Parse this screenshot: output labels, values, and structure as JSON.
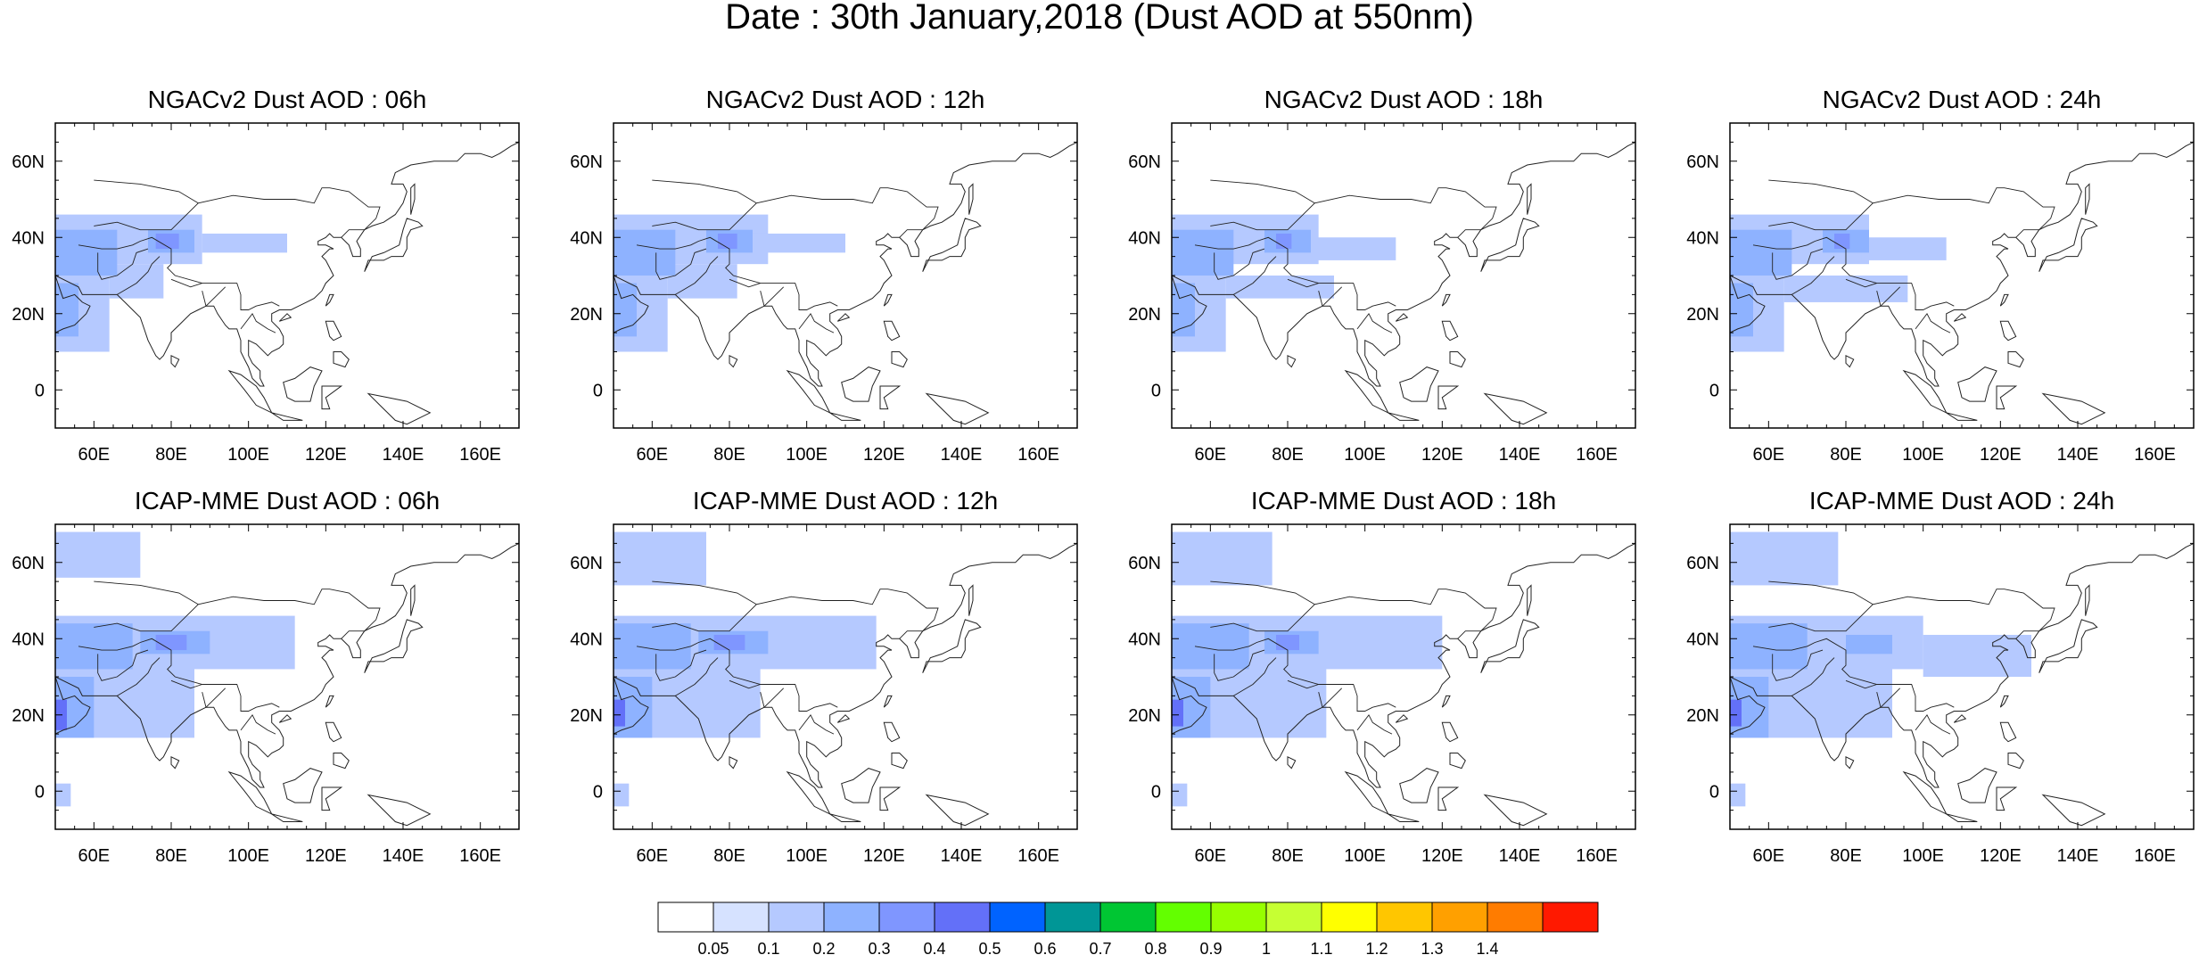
{
  "figure": {
    "title": "Date : 30th January,2018 (Dust AOD at 550nm)",
    "x_ticks": [
      "60E",
      "80E",
      "100E",
      "120E",
      "140E",
      "160E"
    ],
    "y_ticks": [
      "60N",
      "40N",
      "20N",
      "0"
    ],
    "panels": [
      {
        "title": "NGACv2 Dust AOD : 06h"
      },
      {
        "title": "NGACv2 Dust AOD : 12h"
      },
      {
        "title": "NGACv2 Dust AOD : 18h"
      },
      {
        "title": "NGACv2 Dust AOD : 24h"
      },
      {
        "title": "ICAP-MME Dust AOD : 06h"
      },
      {
        "title": "ICAP-MME Dust AOD : 12h"
      },
      {
        "title": "ICAP-MME Dust AOD : 18h"
      },
      {
        "title": "ICAP-MME Dust AOD : 24h"
      }
    ],
    "colorbar": {
      "colors": [
        "#ffffff",
        "#d6e2ff",
        "#b5c9ff",
        "#8eb2ff",
        "#7f96ff",
        "#6370f8",
        "#0063ff",
        "#009696",
        "#00c633",
        "#63ff00",
        "#96ff00",
        "#c6ff33",
        "#ffff00",
        "#ffc600",
        "#ffa000",
        "#ff7c00",
        "#ff1900"
      ],
      "labels": [
        "0.05",
        "0.1",
        "0.2",
        "0.3",
        "0.4",
        "0.5",
        "0.6",
        "0.7",
        "0.8",
        "0.9",
        "1",
        "1.1",
        "1.2",
        "1.3",
        "1.4"
      ]
    }
  },
  "chart_data": {
    "type": "heatmap",
    "title": "Date : 30th January,2018 (Dust AOD at 550nm)",
    "variable": "Dust AOD at 550nm",
    "lon_range": [
      50,
      170
    ],
    "lat_range": [
      -10,
      70
    ],
    "x_ticks": [
      60,
      80,
      100,
      120,
      140,
      160
    ],
    "y_ticks": [
      60,
      40,
      20,
      0
    ],
    "levels": [
      0.05,
      0.1,
      0.2,
      0.3,
      0.4,
      0.5,
      0.6,
      0.7,
      0.8,
      0.9,
      1,
      1.1,
      1.2,
      1.3,
      1.4
    ],
    "panels": [
      {
        "title": "NGACv2 Dust AOD : 06h",
        "model": "NGACv2",
        "hour": "06h",
        "regions": [
          {
            "lon": [
              50,
              88
            ],
            "lat": [
              33,
              46
            ],
            "aod": 0.1
          },
          {
            "lon": [
              88,
              110
            ],
            "lat": [
              36,
              41
            ],
            "aod": 0.1
          },
          {
            "lon": [
              50,
              64
            ],
            "lat": [
              10,
              33
            ],
            "aod": 0.1
          },
          {
            "lon": [
              64,
              78
            ],
            "lat": [
              24,
              33
            ],
            "aod": 0.1
          },
          {
            "lon": [
              50,
              66
            ],
            "lat": [
              30,
              42
            ],
            "aod": 0.2
          },
          {
            "lon": [
              50,
              56
            ],
            "lat": [
              14,
              28
            ],
            "aod": 0.2
          },
          {
            "lon": [
              74,
              86
            ],
            "lat": [
              36,
              42
            ],
            "aod": 0.2
          },
          {
            "lon": [
              76,
              82
            ],
            "lat": [
              37,
              41
            ],
            "aod": 0.3
          }
        ]
      },
      {
        "title": "NGACv2 Dust AOD : 12h",
        "model": "NGACv2",
        "hour": "12h",
        "regions": [
          {
            "lon": [
              50,
              90
            ],
            "lat": [
              33,
              46
            ],
            "aod": 0.1
          },
          {
            "lon": [
              86,
              110
            ],
            "lat": [
              36,
              41
            ],
            "aod": 0.1
          },
          {
            "lon": [
              50,
              64
            ],
            "lat": [
              10,
              33
            ],
            "aod": 0.1
          },
          {
            "lon": [
              64,
              82
            ],
            "lat": [
              24,
              33
            ],
            "aod": 0.1
          },
          {
            "lon": [
              50,
              66
            ],
            "lat": [
              30,
              42
            ],
            "aod": 0.2
          },
          {
            "lon": [
              50,
              56
            ],
            "lat": [
              14,
              28
            ],
            "aod": 0.2
          },
          {
            "lon": [
              74,
              86
            ],
            "lat": [
              36,
              42
            ],
            "aod": 0.2
          },
          {
            "lon": [
              77,
              82
            ],
            "lat": [
              37,
              41
            ],
            "aod": 0.3
          }
        ]
      },
      {
        "title": "NGACv2 Dust AOD : 18h",
        "model": "NGACv2",
        "hour": "18h",
        "regions": [
          {
            "lon": [
              50,
              88
            ],
            "lat": [
              33,
              46
            ],
            "aod": 0.1
          },
          {
            "lon": [
              86,
              108
            ],
            "lat": [
              34,
              40
            ],
            "aod": 0.1
          },
          {
            "lon": [
              50,
              64
            ],
            "lat": [
              10,
              33
            ],
            "aod": 0.1
          },
          {
            "lon": [
              64,
              92
            ],
            "lat": [
              24,
              30
            ],
            "aod": 0.1
          },
          {
            "lon": [
              50,
              66
            ],
            "lat": [
              30,
              42
            ],
            "aod": 0.2
          },
          {
            "lon": [
              50,
              56
            ],
            "lat": [
              14,
              28
            ],
            "aod": 0.2
          },
          {
            "lon": [
              74,
              86
            ],
            "lat": [
              36,
              42
            ],
            "aod": 0.2
          },
          {
            "lon": [
              77,
              81
            ],
            "lat": [
              37,
              41
            ],
            "aod": 0.3
          }
        ]
      },
      {
        "title": "NGACv2 Dust AOD : 24h",
        "model": "NGACv2",
        "hour": "24h",
        "regions": [
          {
            "lon": [
              50,
              86
            ],
            "lat": [
              33,
              46
            ],
            "aod": 0.1
          },
          {
            "lon": [
              84,
              106
            ],
            "lat": [
              34,
              40
            ],
            "aod": 0.1
          },
          {
            "lon": [
              50,
              64
            ],
            "lat": [
              10,
              33
            ],
            "aod": 0.1
          },
          {
            "lon": [
              64,
              96
            ],
            "lat": [
              23,
              30
            ],
            "aod": 0.1
          },
          {
            "lon": [
              50,
              66
            ],
            "lat": [
              30,
              42
            ],
            "aod": 0.2
          },
          {
            "lon": [
              50,
              56
            ],
            "lat": [
              14,
              28
            ],
            "aod": 0.2
          },
          {
            "lon": [
              74,
              86
            ],
            "lat": [
              36,
              42
            ],
            "aod": 0.2
          },
          {
            "lon": [
              77,
              81
            ],
            "lat": [
              37,
              41
            ],
            "aod": 0.3
          }
        ]
      },
      {
        "title": "ICAP-MME Dust AOD : 06h",
        "model": "ICAP-MME",
        "hour": "06h",
        "regions": [
          {
            "lon": [
              50,
              72
            ],
            "lat": [
              56,
              68
            ],
            "aod": 0.1
          },
          {
            "lon": [
              50,
              112
            ],
            "lat": [
              32,
              46
            ],
            "aod": 0.1
          },
          {
            "lon": [
              50,
              86
            ],
            "lat": [
              14,
              33
            ],
            "aod": 0.1
          },
          {
            "lon": [
              50,
              54
            ],
            "lat": [
              -4,
              2
            ],
            "aod": 0.1
          },
          {
            "lon": [
              50,
              70
            ],
            "lat": [
              32,
              44
            ],
            "aod": 0.2
          },
          {
            "lon": [
              50,
              60
            ],
            "lat": [
              14,
              30
            ],
            "aod": 0.2
          },
          {
            "lon": [
              72,
              90
            ],
            "lat": [
              36,
              42
            ],
            "aod": 0.2
          },
          {
            "lon": [
              76,
              84
            ],
            "lat": [
              37,
              41
            ],
            "aod": 0.3
          },
          {
            "lon": [
              50,
              53
            ],
            "lat": [
              16,
              24
            ],
            "aod": 0.4
          }
        ]
      },
      {
        "title": "ICAP-MME Dust AOD : 12h",
        "model": "ICAP-MME",
        "hour": "12h",
        "regions": [
          {
            "lon": [
              50,
              74
            ],
            "lat": [
              54,
              68
            ],
            "aod": 0.1
          },
          {
            "lon": [
              50,
              118
            ],
            "lat": [
              32,
              46
            ],
            "aod": 0.1
          },
          {
            "lon": [
              50,
              88
            ],
            "lat": [
              14,
              33
            ],
            "aod": 0.1
          },
          {
            "lon": [
              50,
              54
            ],
            "lat": [
              -4,
              2
            ],
            "aod": 0.1
          },
          {
            "lon": [
              50,
              70
            ],
            "lat": [
              32,
              44
            ],
            "aod": 0.2
          },
          {
            "lon": [
              50,
              60
            ],
            "lat": [
              14,
              30
            ],
            "aod": 0.2
          },
          {
            "lon": [
              72,
              90
            ],
            "lat": [
              36,
              42
            ],
            "aod": 0.2
          },
          {
            "lon": [
              76,
              84
            ],
            "lat": [
              37,
              41
            ],
            "aod": 0.3
          },
          {
            "lon": [
              50,
              53
            ],
            "lat": [
              17,
              24
            ],
            "aod": 0.4
          }
        ]
      },
      {
        "title": "ICAP-MME Dust AOD : 18h",
        "model": "ICAP-MME",
        "hour": "18h",
        "regions": [
          {
            "lon": [
              50,
              76
            ],
            "lat": [
              54,
              68
            ],
            "aod": 0.1
          },
          {
            "lon": [
              50,
              120
            ],
            "lat": [
              32,
              46
            ],
            "aod": 0.1
          },
          {
            "lon": [
              50,
              90
            ],
            "lat": [
              14,
              33
            ],
            "aod": 0.1
          },
          {
            "lon": [
              50,
              54
            ],
            "lat": [
              -4,
              2
            ],
            "aod": 0.1
          },
          {
            "lon": [
              50,
              70
            ],
            "lat": [
              32,
              44
            ],
            "aod": 0.2
          },
          {
            "lon": [
              50,
              60
            ],
            "lat": [
              14,
              30
            ],
            "aod": 0.2
          },
          {
            "lon": [
              74,
              88
            ],
            "lat": [
              36,
              42
            ],
            "aod": 0.2
          },
          {
            "lon": [
              77,
              83
            ],
            "lat": [
              37,
              41
            ],
            "aod": 0.3
          },
          {
            "lon": [
              50,
              53
            ],
            "lat": [
              17,
              24
            ],
            "aod": 0.4
          }
        ]
      },
      {
        "title": "ICAP-MME Dust AOD : 24h",
        "model": "ICAP-MME",
        "hour": "24h",
        "regions": [
          {
            "lon": [
              50,
              78
            ],
            "lat": [
              54,
              68
            ],
            "aod": 0.1
          },
          {
            "lon": [
              50,
              100
            ],
            "lat": [
              32,
              46
            ],
            "aod": 0.1
          },
          {
            "lon": [
              100,
              128
            ],
            "lat": [
              30,
              41
            ],
            "aod": 0.1
          },
          {
            "lon": [
              50,
              92
            ],
            "lat": [
              14,
              33
            ],
            "aod": 0.1
          },
          {
            "lon": [
              50,
              54
            ],
            "lat": [
              -4,
              2
            ],
            "aod": 0.1
          },
          {
            "lon": [
              50,
              70
            ],
            "lat": [
              32,
              44
            ],
            "aod": 0.2
          },
          {
            "lon": [
              50,
              60
            ],
            "lat": [
              14,
              30
            ],
            "aod": 0.2
          },
          {
            "lon": [
              80,
              92
            ],
            "lat": [
              36,
              41
            ],
            "aod": 0.2
          },
          {
            "lon": [
              50,
              53
            ],
            "lat": [
              17,
              24
            ],
            "aod": 0.4
          }
        ]
      }
    ]
  }
}
